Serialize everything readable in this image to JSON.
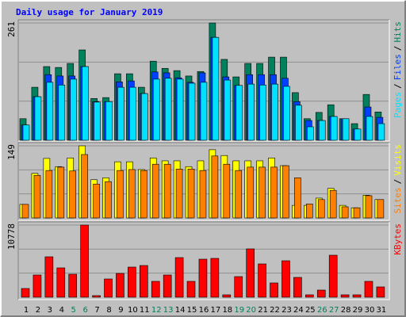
{
  "chart_data": {
    "type": "bar",
    "title": "Daily usage for January 2019",
    "categories": [
      "1",
      "2",
      "3",
      "4",
      "5",
      "6",
      "7",
      "8",
      "9",
      "10",
      "11",
      "12",
      "13",
      "14",
      "15",
      "16",
      "17",
      "18",
      "19",
      "20",
      "21",
      "22",
      "23",
      "24",
      "25",
      "26",
      "27",
      "28",
      "29",
      "30",
      "31"
    ],
    "highlighted_categories": [
      4,
      5,
      11,
      12,
      18,
      19,
      25,
      26
    ],
    "highlight_color": "#00805c",
    "legend_separator": "/",
    "panels": [
      {
        "ylim": [
          0,
          261
        ],
        "yticks": [
          261
        ],
        "grid_divisions": 3,
        "series": [
          {
            "name": "Hits",
            "color": "#00805c",
            "values": [
              48,
              118,
              164,
              162,
              171,
              201,
              93,
              95,
              148,
              148,
              118,
              176,
              160,
              155,
              143,
              153,
              261,
              180,
              141,
              171,
              171,
              185,
              185,
              106,
              48,
              62,
              79,
              48,
              37,
              102,
              63
            ]
          },
          {
            "name": "Files",
            "color": "#0040ff",
            "values": [
              34,
              97,
              146,
              143,
              143,
              164,
              86,
              86,
              130,
              132,
              104,
              152,
              150,
              139,
              129,
              150,
              229,
              141,
              122,
              146,
              146,
              146,
              138,
              86,
              44,
              44,
              53,
              48,
              25,
              74,
              51
            ]
          },
          {
            "name": "Pages",
            "color": "#00e0ff",
            "values": [
              34,
              97,
              129,
              123,
              136,
              164,
              85,
              86,
              118,
              118,
              104,
              136,
              138,
              136,
              127,
              129,
              229,
              134,
              122,
              125,
              123,
              125,
              120,
              78,
              30,
              44,
              53,
              48,
              25,
              53,
              37
            ]
          }
        ]
      },
      {
        "ylim": [
          0,
          149
        ],
        "yticks": [
          149
        ],
        "grid_divisions": 3,
        "series": [
          {
            "name": "Visits",
            "color": "#ffff00",
            "values": [
              28,
              92,
              123,
              106,
              124,
              149,
              79,
              83,
              116,
              116,
              100,
              124,
              118,
              118,
              106,
              118,
              141,
              129,
              118,
              118,
              118,
              124,
              108,
              26,
              26,
              41,
              61,
              26,
              21,
              47,
              38
            ]
          },
          {
            "name": "Sites",
            "color": "#ff8000",
            "values": [
              28,
              88,
              98,
              105,
              97,
              131,
              70,
              75,
              98,
              100,
              98,
              111,
              111,
              101,
              101,
              98,
              128,
              111,
              98,
              105,
              105,
              105,
              108,
              83,
              29,
              38,
              57,
              23,
              21,
              46,
              38
            ]
          }
        ]
      },
      {
        "ylim": [
          0,
          10778
        ],
        "yticks": [
          10778
        ],
        "grid_divisions": 3,
        "series": [
          {
            "name": "KBytes",
            "color": "#ff0000",
            "values": [
              1302,
              3315,
              6038,
              4381,
              3434,
              10778,
              237,
              2723,
              3552,
              4499,
              4736,
              2368,
              3315,
              5920,
              2368,
              5683,
              5802,
              355,
              3078,
              7222,
              4973,
              2131,
              5446,
              2960,
              355,
              1066,
              6275,
              355,
              355,
              2368,
              1539
            ]
          }
        ]
      }
    ]
  }
}
